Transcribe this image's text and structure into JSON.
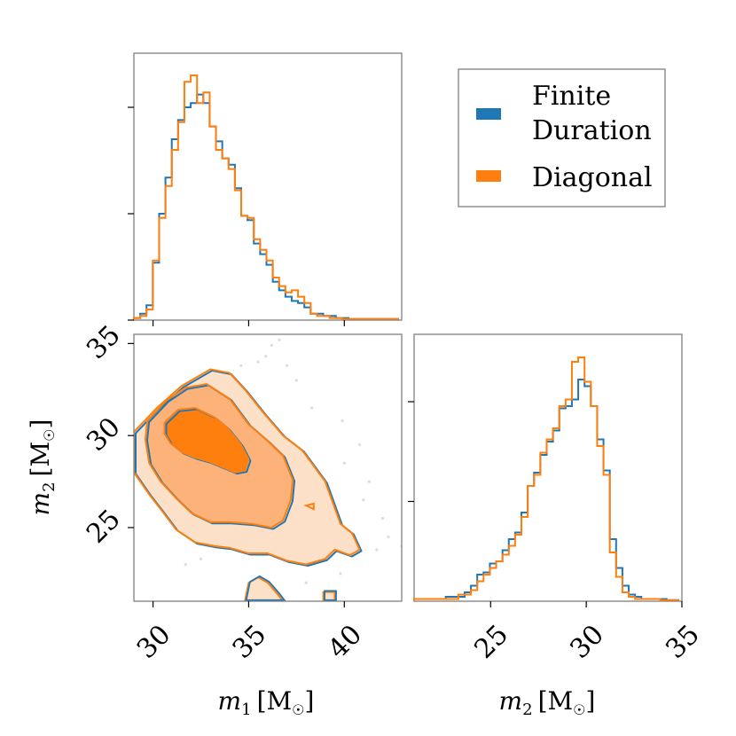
{
  "colors": {
    "finite": "#1f77b4",
    "diagonal": "#ff7f0e",
    "fill_dark": "#ff7f0e",
    "fill_mid": "#fdb27a",
    "fill_light": "#fde0c8",
    "axis": "#808080",
    "scatter": "#dcdcdc"
  },
  "legend": {
    "items": [
      {
        "label_line1": "Finite",
        "label_line2": "Duration",
        "color": "#1f77b4"
      },
      {
        "label_line1": "Diagonal",
        "label_line2": "",
        "color": "#ff7f0e"
      }
    ]
  },
  "axis_labels": {
    "m1_sym": "m",
    "m1_sub": "1",
    "m2_sym": "m",
    "m2_sub": "2",
    "unit_open": "[M",
    "unit_sun": "☉",
    "unit_close": "]"
  },
  "chart_data": [
    {
      "type": "histogram",
      "panel": "m1 marginal",
      "xlim": [
        29.0,
        43.0
      ],
      "xticks": [
        30,
        35,
        40
      ],
      "bins_start": 29.0,
      "bin_width": 0.33,
      "series": [
        {
          "name": "Finite Duration",
          "color": "#1f77b4",
          "values": [
            0.01,
            0.03,
            0.07,
            0.27,
            0.5,
            0.67,
            0.85,
            0.94,
            1.0,
            1.02,
            1.06,
            1.02,
            0.91,
            0.84,
            0.76,
            0.73,
            0.62,
            0.49,
            0.47,
            0.36,
            0.31,
            0.26,
            0.18,
            0.14,
            0.11,
            0.09,
            0.08,
            0.06,
            0.03,
            0.03,
            0.02,
            0.02,
            0.01,
            0.01,
            0.005,
            0.005,
            0.005,
            0.005,
            0.005,
            0.005,
            0.005,
            0.005
          ]
        },
        {
          "name": "Diagonal",
          "color": "#ff7f0e",
          "values": [
            0.01,
            0.02,
            0.05,
            0.28,
            0.48,
            0.63,
            0.8,
            0.93,
            1.12,
            1.15,
            1.02,
            1.07,
            0.91,
            0.8,
            0.76,
            0.71,
            0.61,
            0.49,
            0.48,
            0.38,
            0.33,
            0.28,
            0.2,
            0.16,
            0.13,
            0.14,
            0.11,
            0.08,
            0.03,
            0.02,
            0.02,
            0.01,
            0.01,
            0.005,
            0.005,
            0.005,
            0.005,
            0.005,
            0.005,
            0.005,
            0.005,
            0.005
          ]
        }
      ]
    },
    {
      "type": "contour",
      "panel": "m1 vs m2 joint",
      "xlim": [
        29.0,
        43.0
      ],
      "ylim": [
        21.0,
        35.5
      ],
      "xticks": [
        30,
        35,
        40
      ],
      "yticks": [
        25,
        30,
        35
      ],
      "xlabel": "m1 [M☉]",
      "ylabel": "m2 [M☉]",
      "levels": [
        {
          "name": "outer",
          "fill": "#fde0c8",
          "points": [
            [
              29.0,
              30.2
            ],
            [
              30.2,
              31.5
            ],
            [
              31.5,
              32.7
            ],
            [
              33.0,
              33.6
            ],
            [
              34.0,
              33.4
            ],
            [
              34.8,
              32.5
            ],
            [
              35.8,
              31.2
            ],
            [
              36.8,
              30.0
            ],
            [
              37.8,
              29.2
            ],
            [
              39.0,
              27.5
            ],
            [
              39.8,
              25.2
            ],
            [
              40.4,
              24.7
            ],
            [
              40.8,
              23.8
            ],
            [
              40.3,
              23.5
            ],
            [
              39.5,
              23.8
            ],
            [
              39.0,
              23.3
            ],
            [
              38.0,
              23.0
            ],
            [
              37.0,
              23.2
            ],
            [
              36.0,
              23.6
            ],
            [
              35.0,
              23.6
            ],
            [
              34.0,
              23.9
            ],
            [
              33.2,
              24.0
            ],
            [
              32.2,
              24.2
            ],
            [
              31.2,
              24.9
            ],
            [
              30.4,
              26.0
            ],
            [
              29.8,
              26.8
            ],
            [
              29.0,
              28.0
            ]
          ]
        },
        {
          "name": "middle",
          "fill": "#fdb27a",
          "points": [
            [
              29.7,
              30.8
            ],
            [
              30.7,
              31.9
            ],
            [
              31.7,
              32.6
            ],
            [
              32.8,
              32.8
            ],
            [
              34.0,
              32.0
            ],
            [
              35.0,
              30.6
            ],
            [
              36.0,
              29.7
            ],
            [
              36.8,
              28.9
            ],
            [
              37.3,
              27.6
            ],
            [
              37.2,
              26.5
            ],
            [
              36.8,
              25.4
            ],
            [
              36.2,
              25.0
            ],
            [
              35.2,
              25.2
            ],
            [
              34.0,
              25.3
            ],
            [
              33.0,
              25.3
            ],
            [
              32.0,
              25.8
            ],
            [
              31.2,
              26.6
            ],
            [
              30.4,
              27.5
            ],
            [
              29.8,
              28.5
            ],
            [
              29.6,
              29.8
            ]
          ]
        },
        {
          "name": "inner",
          "fill": "#ff7f0e",
          "points": [
            [
              30.6,
              30.7
            ],
            [
              31.3,
              31.4
            ],
            [
              32.2,
              31.5
            ],
            [
              33.2,
              31.0
            ],
            [
              33.9,
              30.4
            ],
            [
              34.6,
              29.5
            ],
            [
              35.0,
              28.7
            ],
            [
              34.8,
              28.1
            ],
            [
              34.3,
              28.0
            ],
            [
              33.6,
              28.3
            ],
            [
              32.9,
              28.6
            ],
            [
              32.2,
              28.8
            ],
            [
              31.5,
              29.1
            ],
            [
              30.9,
              29.6
            ],
            [
              30.6,
              30.1
            ]
          ]
        }
      ],
      "extra_islands": [
        {
          "fill": "#fde0c8",
          "points": [
            [
              34.8,
              21.0
            ],
            [
              35.0,
              22.0
            ],
            [
              35.5,
              22.3
            ],
            [
              36.0,
              22.0
            ],
            [
              36.5,
              21.4
            ],
            [
              36.8,
              21.0
            ]
          ]
        },
        {
          "fill": "#fde0c8",
          "points": [
            [
              38.9,
              21.0
            ],
            [
              38.9,
              21.5
            ],
            [
              39.5,
              21.5
            ],
            [
              39.5,
              21.0
            ]
          ]
        }
      ],
      "scatter": [
        [
          36.2,
          34.9
        ],
        [
          36.6,
          35.2
        ],
        [
          35.9,
          34.3
        ],
        [
          37.0,
          33.8
        ],
        [
          37.5,
          33.0
        ],
        [
          38.3,
          31.5
        ],
        [
          39.9,
          30.8
        ],
        [
          40.8,
          29.5
        ],
        [
          40.0,
          28.5
        ],
        [
          41.3,
          27.5
        ],
        [
          41.0,
          26.5
        ],
        [
          39.5,
          26.0
        ],
        [
          42.0,
          25.5
        ],
        [
          42.3,
          24.5
        ],
        [
          43.0,
          24.0
        ],
        [
          41.7,
          23.8
        ],
        [
          39.8,
          22.5
        ],
        [
          38.0,
          22.0
        ],
        [
          33.0,
          24.8
        ],
        [
          31.0,
          26.0
        ],
        [
          31.7,
          23.0
        ],
        [
          32.5,
          23.3
        ],
        [
          35.5,
          34.0
        ],
        [
          34.6,
          33.8
        ],
        [
          38.9,
          27.0
        ]
      ]
    },
    {
      "type": "histogram",
      "panel": "m2 marginal",
      "xlim": [
        21.0,
        35.0
      ],
      "xticks": [
        25,
        30,
        35
      ],
      "xlabel": "m2 [M☉]",
      "bins_start": 21.0,
      "bin_width": 0.33,
      "series": [
        {
          "name": "Finite Duration",
          "color": "#1f77b4",
          "values": [
            0.01,
            0.01,
            0.01,
            0.01,
            0.01,
            0.02,
            0.02,
            0.02,
            0.04,
            0.07,
            0.12,
            0.13,
            0.17,
            0.18,
            0.23,
            0.28,
            0.31,
            0.4,
            0.52,
            0.58,
            0.66,
            0.72,
            0.77,
            0.87,
            0.88,
            0.91,
            1.0,
            0.97,
            0.88,
            0.73,
            0.59,
            0.28,
            0.15,
            0.07,
            0.03,
            0.02,
            0.01,
            0.01,
            0.01,
            0.01,
            0.005,
            0.005
          ]
        },
        {
          "name": "Diagonal",
          "color": "#ff7f0e",
          "values": [
            0.01,
            0.01,
            0.01,
            0.01,
            0.01,
            0.01,
            0.01,
            0.03,
            0.03,
            0.05,
            0.09,
            0.12,
            0.15,
            0.18,
            0.21,
            0.25,
            0.3,
            0.38,
            0.52,
            0.57,
            0.67,
            0.73,
            0.78,
            0.88,
            0.91,
            1.08,
            1.1,
            0.99,
            0.88,
            0.7,
            0.57,
            0.22,
            0.11,
            0.04,
            0.02,
            0.01,
            0.01,
            0.01,
            0.01,
            0.005,
            0.005,
            0.005
          ]
        }
      ]
    }
  ]
}
